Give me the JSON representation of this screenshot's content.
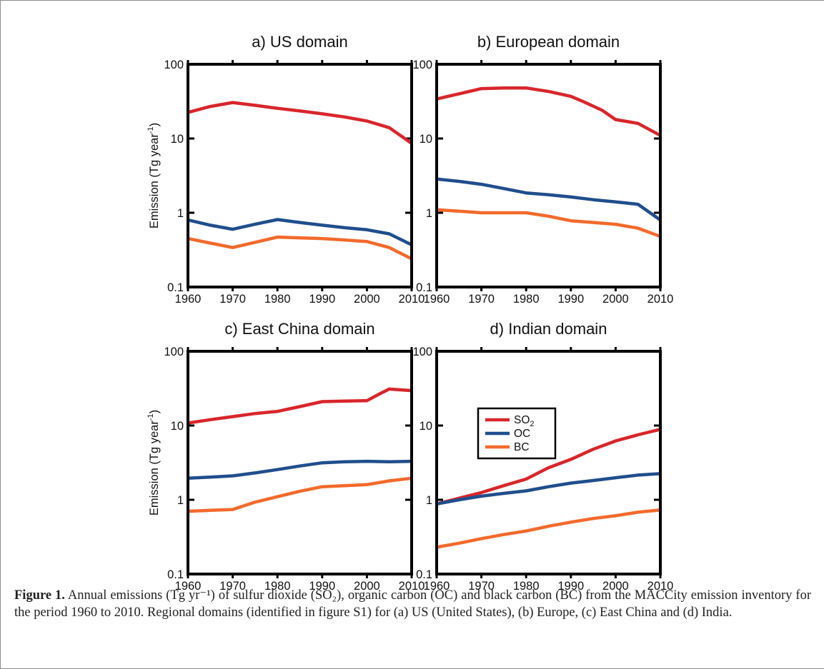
{
  "chart_data": [
    {
      "type": "line",
      "title": "a) US domain",
      "xlabel": "",
      "ylabel": "Emission (Tg year",
      "ylabel_sup": "-1",
      "ylabel_end": ")",
      "xlim": [
        1960,
        2010
      ],
      "ylim": [
        0.1,
        100
      ],
      "yscale": "log",
      "xticks": [
        "1960",
        "1970",
        "1980",
        "1990",
        "2000",
        "2010"
      ],
      "yticks": [
        "0.1",
        "1",
        "10",
        "100"
      ],
      "series": [
        {
          "key": "SO2",
          "color": "#d8262b",
          "x": [
            1960,
            1965,
            1970,
            1975,
            1980,
            1985,
            1990,
            1995,
            2000,
            2005,
            2010
          ],
          "y": [
            22.5,
            27,
            30.5,
            28,
            25.5,
            23.5,
            21.5,
            19.5,
            17.2,
            14.0,
            8.6
          ]
        },
        {
          "key": "OC",
          "color": "#1f4e8c",
          "x": [
            1960,
            1965,
            1970,
            1975,
            1980,
            1985,
            1990,
            1995,
            2000,
            2005,
            2010
          ],
          "y": [
            0.8,
            0.68,
            0.6,
            0.7,
            0.81,
            0.74,
            0.68,
            0.63,
            0.59,
            0.52,
            0.37
          ]
        },
        {
          "key": "BC",
          "color": "#f26a2b",
          "x": [
            1960,
            1965,
            1970,
            1975,
            1980,
            1985,
            1990,
            1995,
            2000,
            2005,
            2010
          ],
          "y": [
            0.45,
            0.39,
            0.34,
            0.4,
            0.47,
            0.46,
            0.45,
            0.43,
            0.41,
            0.34,
            0.24
          ]
        }
      ]
    },
    {
      "type": "line",
      "title": "b) European domain",
      "xlabel": "",
      "ylabel": "",
      "xlim": [
        1960,
        2010
      ],
      "ylim": [
        0.1,
        100
      ],
      "yscale": "log",
      "xticks": [
        "1960",
        "1970",
        "1980",
        "1990",
        "2000",
        "2010"
      ],
      "yticks": [
        "0.1",
        "1",
        "10",
        "100"
      ],
      "series": [
        {
          "key": "SO2",
          "color": "#d8262b",
          "x": [
            1960,
            1965,
            1970,
            1975,
            1980,
            1985,
            1990,
            1993,
            1997,
            2000,
            2005,
            2010
          ],
          "y": [
            34,
            40,
            47,
            48,
            48,
            43,
            37,
            31,
            24,
            18,
            16,
            11
          ]
        },
        {
          "key": "OC",
          "color": "#1f4e8c",
          "x": [
            1960,
            1965,
            1970,
            1975,
            1980,
            1985,
            1990,
            1995,
            2000,
            2005,
            2010
          ],
          "y": [
            2.85,
            2.65,
            2.42,
            2.12,
            1.85,
            1.75,
            1.63,
            1.5,
            1.4,
            1.3,
            0.8
          ]
        },
        {
          "key": "BC",
          "color": "#f26a2b",
          "x": [
            1960,
            1965,
            1970,
            1975,
            1980,
            1985,
            1990,
            1995,
            2000,
            2005,
            2010
          ],
          "y": [
            1.1,
            1.05,
            1.0,
            1.0,
            1.0,
            0.9,
            0.78,
            0.74,
            0.7,
            0.62,
            0.48
          ]
        }
      ]
    },
    {
      "type": "line",
      "title": "c) East China domain",
      "xlabel": "",
      "ylabel": "Emission (Tg year",
      "ylabel_sup": "-1",
      "ylabel_end": ")",
      "xlim": [
        1960,
        2010
      ],
      "ylim": [
        0.1,
        100
      ],
      "yscale": "log",
      "xticks": [
        "1960",
        "1970",
        "1980",
        "1990",
        "2000",
        "2010"
      ],
      "yticks": [
        "0.1",
        "1",
        "10",
        "100"
      ],
      "series": [
        {
          "key": "SO2",
          "color": "#d8262b",
          "x": [
            1960,
            1965,
            1970,
            1975,
            1980,
            1985,
            1990,
            1995,
            2000,
            2003,
            2005,
            2010
          ],
          "y": [
            10.8,
            12.0,
            13.2,
            14.5,
            15.5,
            18.0,
            21.0,
            21.3,
            21.6,
            27.0,
            31.0,
            29.5
          ]
        },
        {
          "key": "OC",
          "color": "#1f4e8c",
          "x": [
            1960,
            1965,
            1970,
            1975,
            1980,
            1985,
            1990,
            1995,
            2000,
            2005,
            2010
          ],
          "y": [
            1.95,
            2.02,
            2.1,
            2.3,
            2.55,
            2.85,
            3.15,
            3.25,
            3.3,
            3.25,
            3.3
          ]
        },
        {
          "key": "BC",
          "color": "#f26a2b",
          "x": [
            1960,
            1965,
            1970,
            1975,
            1980,
            1985,
            1990,
            1995,
            2000,
            2005,
            2010
          ],
          "y": [
            0.7,
            0.72,
            0.74,
            0.93,
            1.1,
            1.3,
            1.5,
            1.55,
            1.6,
            1.8,
            1.95
          ]
        }
      ]
    },
    {
      "type": "line",
      "title": "d) Indian domain",
      "xlabel": "",
      "ylabel": "",
      "xlim": [
        1960,
        2010
      ],
      "ylim": [
        0.1,
        100
      ],
      "yscale": "log",
      "xticks": [
        "1960",
        "1970",
        "1980",
        "1990",
        "2000",
        "2010"
      ],
      "yticks": [
        "0.1",
        "1",
        "10",
        "100"
      ],
      "legend": {
        "placement": "upper-left",
        "entries": [
          {
            "key": "SO2",
            "label": "SO",
            "sub": "2"
          },
          {
            "key": "OC",
            "label": "OC",
            "sub": ""
          },
          {
            "key": "BC",
            "label": "BC",
            "sub": ""
          }
        ]
      },
      "series": [
        {
          "key": "SO2",
          "color": "#d8262b",
          "x": [
            1960,
            1965,
            1970,
            1975,
            1980,
            1985,
            1990,
            1995,
            2000,
            2005,
            2010
          ],
          "y": [
            0.88,
            1.05,
            1.25,
            1.55,
            1.9,
            2.7,
            3.5,
            4.8,
            6.2,
            7.5,
            8.9
          ]
        },
        {
          "key": "OC",
          "color": "#1f4e8c",
          "x": [
            1960,
            1965,
            1970,
            1975,
            1980,
            1985,
            1990,
            1995,
            2000,
            2005,
            2010
          ],
          "y": [
            0.88,
            1.0,
            1.12,
            1.22,
            1.32,
            1.5,
            1.68,
            1.82,
            1.98,
            2.15,
            2.25
          ]
        },
        {
          "key": "BC",
          "color": "#f26a2b",
          "x": [
            1960,
            1965,
            1970,
            1975,
            1980,
            1985,
            1990,
            1995,
            2000,
            2005,
            2010
          ],
          "y": [
            0.23,
            0.26,
            0.3,
            0.34,
            0.38,
            0.44,
            0.5,
            0.56,
            0.61,
            0.68,
            0.73
          ]
        }
      ]
    }
  ],
  "caption": {
    "label": "Figure 1.",
    "text": " Annual emissions (Tg yr⁻¹) of sulfur dioxide (SO₂), organic carbon (OC) and black carbon (BC) from the MACCity emission inventory for the period 1960 to 2010. Regional domains (identified in figure S1) for (a) US (United States), (b) Europe, (c) East China and (d) India."
  }
}
